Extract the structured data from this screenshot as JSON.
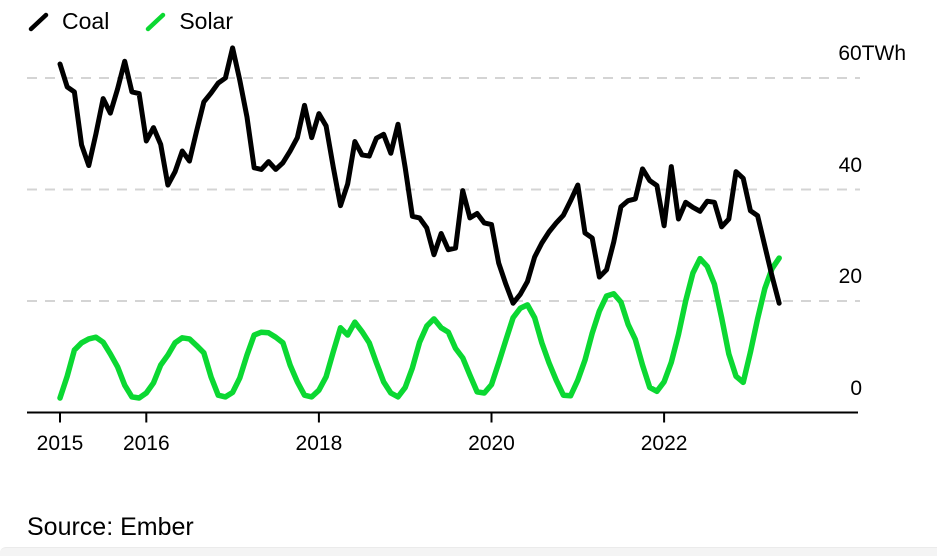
{
  "legend": {
    "items": [
      {
        "label": "Coal",
        "color": "#000000"
      },
      {
        "label": "Solar",
        "color": "#0bd832"
      }
    ]
  },
  "axis": {
    "y": {
      "labels": [
        "60TWh",
        "40",
        "20",
        "0"
      ],
      "values": [
        60,
        40,
        20,
        0
      ],
      "unit": "TWh"
    },
    "x": {
      "labels": [
        "2015",
        "2016",
        "2018",
        "2020",
        "2022"
      ],
      "year_offsets": [
        0,
        1,
        3,
        5,
        7
      ]
    }
  },
  "source": {
    "text": "Source: Ember"
  },
  "colors": {
    "coal": "#000000",
    "solar": "#0bd832",
    "gridline": "#d4d4d4",
    "axis": "#000000",
    "bottom_strip": "#f4f4f4"
  },
  "chart_data": {
    "type": "line",
    "frequency": "monthly",
    "x_start": "2015-01",
    "x_end": "2023-05",
    "unit": "TWh",
    "ylim": [
      0,
      66
    ],
    "grid": "horizontal dashed gridlines at 20, 40, 60; solid x-axis at 0",
    "legend_position": "top-left",
    "series": [
      {
        "name": "Coal",
        "color": "#000000",
        "values": [
          62.5,
          58.4,
          57.5,
          48,
          44.3,
          50,
          56.3,
          53.7,
          58,
          63,
          57.5,
          57.2,
          48.7,
          51.1,
          48.1,
          40.8,
          43.2,
          46.9,
          45.1,
          50.5,
          55.7,
          57.3,
          59.1,
          60,
          65.4,
          59.6,
          53,
          43.9,
          43.6,
          45,
          43.6,
          44.8,
          46.9,
          49.3,
          55.1,
          49.3,
          53.6,
          51.4,
          44,
          37.1,
          41,
          48.6,
          46.2,
          46,
          49.2,
          49.9,
          46.5,
          51.7,
          43.9,
          35.2,
          34.9,
          33.1,
          28.3,
          32.1,
          29.2,
          29.5,
          39.8,
          34.9,
          35.7,
          34,
          33.7,
          26.8,
          23,
          19.6,
          21.2,
          23.5,
          27.9,
          30.4,
          32.4,
          34,
          35.4,
          38,
          40.8,
          32.2,
          31.3,
          24.3,
          25.6,
          30.6,
          36.9,
          38,
          38.3,
          43.7,
          41.6,
          40.7,
          33.5,
          44.1,
          34.7,
          37.7,
          36.8,
          36.1,
          37.9,
          37.7,
          33.3,
          34.7,
          43.2,
          42,
          36.2,
          35.3,
          29.9,
          24.5,
          19.6
        ]
      },
      {
        "name": "Solar",
        "color": "#0bd832",
        "values": [
          2.6,
          6.5,
          11.2,
          12.5,
          13.2,
          13.5,
          12.6,
          10.5,
          8.2,
          4.9,
          2.8,
          2.6,
          3.5,
          5.3,
          8.5,
          10.3,
          12.5,
          13.4,
          13.2,
          12,
          10.7,
          6.4,
          3.1,
          2.8,
          3.6,
          6.2,
          10.3,
          13.9,
          14.4,
          14.3,
          13.5,
          12.5,
          8.5,
          5.5,
          3.1,
          2.8,
          4,
          6.4,
          10.9,
          15.2,
          13.9,
          16.2,
          14.5,
          12.5,
          8.9,
          5.5,
          3.5,
          2.8,
          4.5,
          8,
          12.6,
          15.5,
          16.8,
          15.2,
          14.4,
          11.5,
          9.8,
          6.7,
          3.7,
          3.5,
          5,
          8.9,
          13,
          17,
          18.7,
          19.3,
          17,
          12.5,
          8.9,
          5.8,
          3.1,
          3,
          5.8,
          9.4,
          14.2,
          18.2,
          20.9,
          21.3,
          19.8,
          15.8,
          13.1,
          8.5,
          4.5,
          3.8,
          5.5,
          9,
          14,
          20,
          25,
          27.6,
          26.2,
          23,
          17,
          10.5,
          6.5,
          5.4,
          10.8,
          16.8,
          22.2,
          25.8,
          27.7
        ]
      }
    ]
  }
}
